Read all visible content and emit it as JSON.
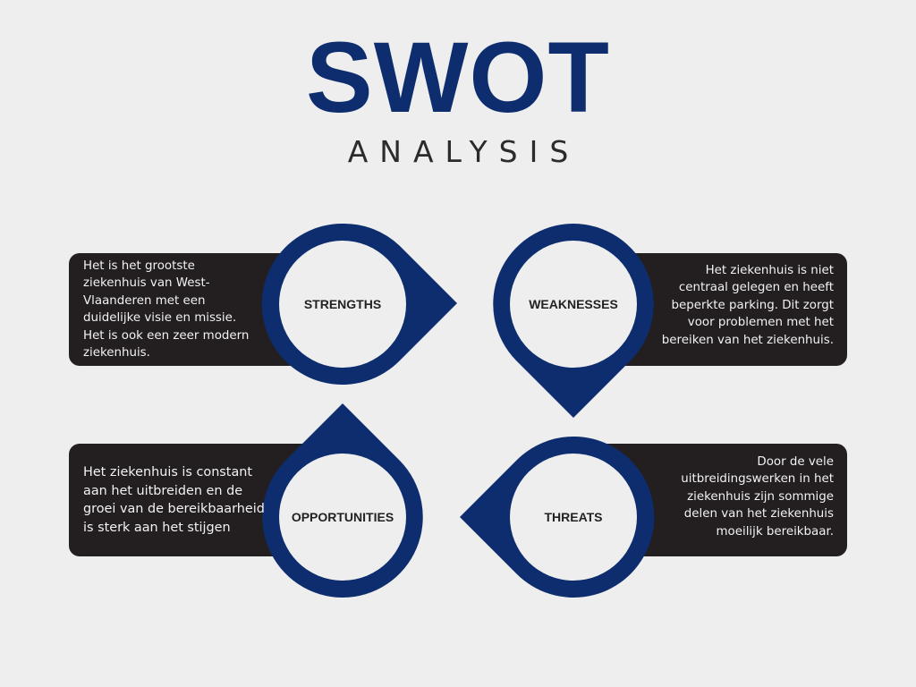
{
  "header": {
    "title": "SWOT",
    "subtitle": "ANALYSIS"
  },
  "colors": {
    "accent": "#0d2d6e",
    "panel": "#231f20",
    "background": "#eeeeef"
  },
  "quadrants": {
    "strengths": {
      "label": "STRENGTHS",
      "lines": [
        "Het is het grootste",
        "ziekenhuis van West-",
        "Vlaanderen met een",
        "duidelijke visie en missie.",
        "Het is ook een zeer modern",
        "ziekenhuis."
      ]
    },
    "weaknesses": {
      "label": "WEAKNESSES",
      "lines": [
        "Het ziekenhuis is niet",
        "centraal gelegen en heeft",
        "beperkte parking. Dit zorgt",
        "voor problemen met het",
        "bereiken van het ziekenhuis."
      ]
    },
    "opportunities": {
      "label": "OPPORTUNITIES",
      "lines": [
        "Het ziekenhuis is constant",
        "aan het uitbreiden en de",
        "groei van de bereikbaarheid",
        "is sterk aan het stijgen"
      ]
    },
    "threats": {
      "label": "THREATS",
      "lines": [
        "Door de vele",
        "uitbreidingswerken in het",
        "ziekenhuis zijn sommige",
        "delen van het ziekenhuis",
        "moeilijk bereikbaar."
      ]
    }
  }
}
